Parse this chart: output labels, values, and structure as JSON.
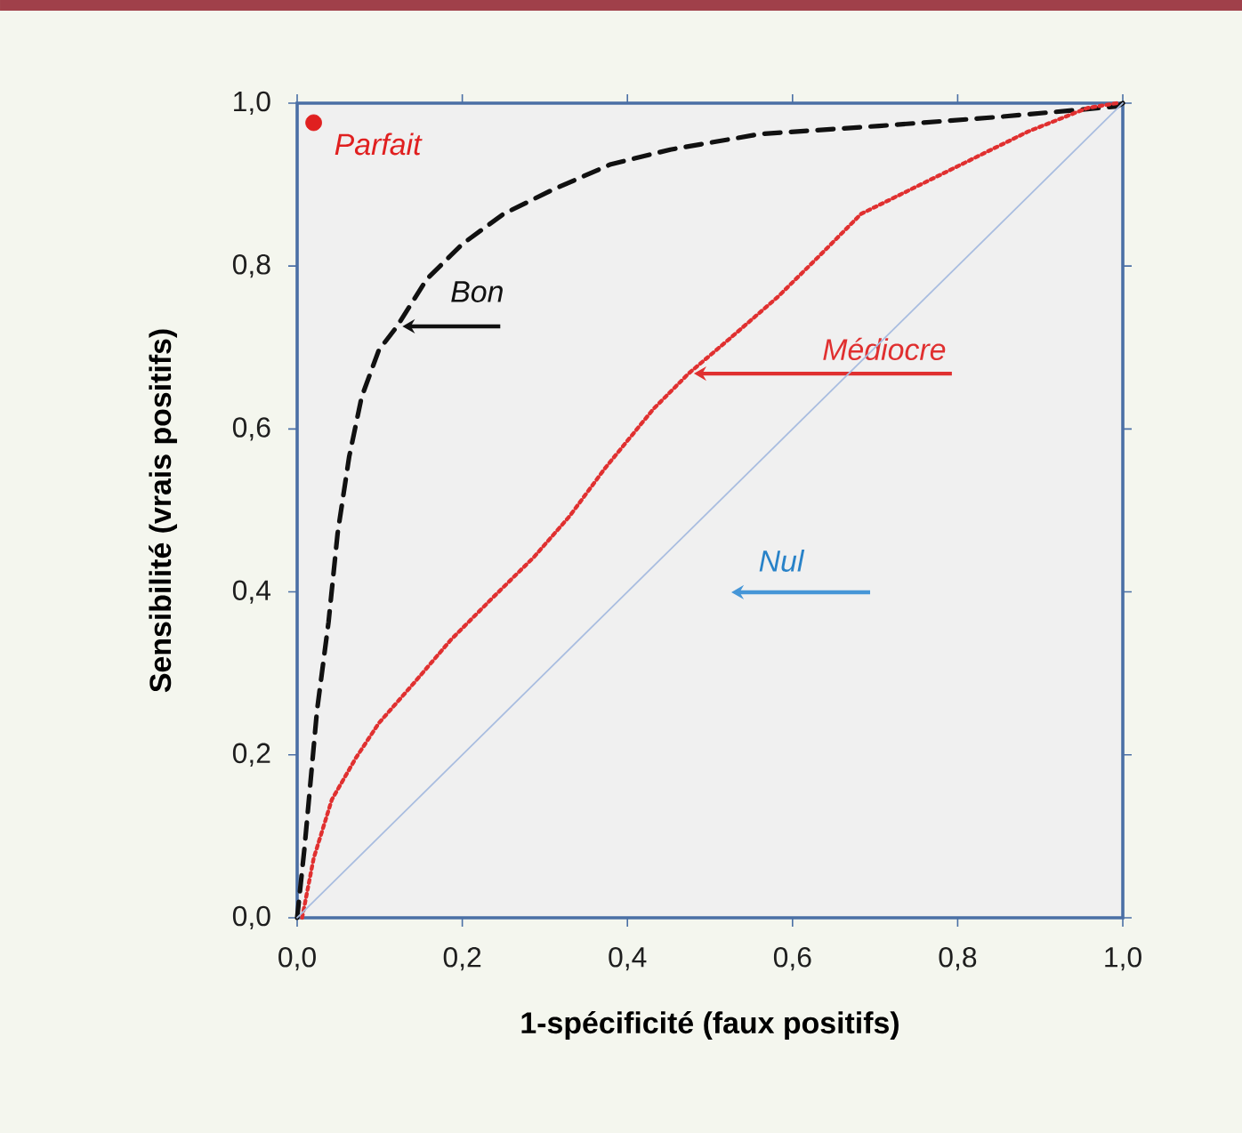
{
  "chart_data": {
    "type": "line",
    "xlabel": "1-spécificité (faux positifs)",
    "ylabel": "Sensibilité (vrais positifs)",
    "xlim": [
      0,
      1
    ],
    "ylim": [
      0,
      1
    ],
    "xticks": [
      {
        "value": 0,
        "label": "0,0"
      },
      {
        "value": 0.2,
        "label": "0,2"
      },
      {
        "value": 0.4,
        "label": "0,4"
      },
      {
        "value": 0.6,
        "label": "0,6"
      },
      {
        "value": 0.8,
        "label": "0,8"
      },
      {
        "value": 1,
        "label": "1,0"
      }
    ],
    "yticks": [
      {
        "value": 0,
        "label": "0,0"
      },
      {
        "value": 0.2,
        "label": "0,2"
      },
      {
        "value": 0.4,
        "label": "0,4"
      },
      {
        "value": 0.6,
        "label": "0,6"
      },
      {
        "value": 0.8,
        "label": "0,8"
      },
      {
        "value": 1,
        "label": "1,0"
      }
    ],
    "grid": false,
    "legend": false,
    "series": [
      {
        "name": "Bon",
        "color": "#111111",
        "line_style": "dashed",
        "marker": "none",
        "x": [
          0,
          0.009,
          0.024,
          0.038,
          0.049,
          0.063,
          0.078,
          0.099,
          0.121,
          0.157,
          0.2,
          0.25,
          0.308,
          0.38,
          0.452,
          0.56,
          0.705,
          0.849,
          0.993,
          1
        ],
        "values": [
          0,
          0.087,
          0.254,
          0.363,
          0.472,
          0.566,
          0.639,
          0.697,
          0.726,
          0.784,
          0.827,
          0.864,
          0.893,
          0.925,
          0.943,
          0.962,
          0.972,
          0.983,
          0.996,
          1
        ]
      },
      {
        "name": "Médiocre",
        "color": "#e03030",
        "line_style": "dotted",
        "marker": "none",
        "x": [
          0.006,
          0.02,
          0.042,
          0.071,
          0.099,
          0.143,
          0.186,
          0.236,
          0.287,
          0.33,
          0.373,
          0.431,
          0.474,
          0.524,
          0.582,
          0.633,
          0.683,
          0.741,
          0.813,
          0.885,
          0.957,
          0.993
        ],
        "values": [
          0,
          0.073,
          0.145,
          0.196,
          0.239,
          0.29,
          0.341,
          0.392,
          0.443,
          0.493,
          0.552,
          0.624,
          0.668,
          0.711,
          0.762,
          0.813,
          0.864,
          0.893,
          0.929,
          0.965,
          0.994,
          1
        ]
      },
      {
        "name": "Nul",
        "color": "#a9bde0",
        "line_style": "solid",
        "marker": "none",
        "x": [
          0,
          1
        ],
        "values": [
          0,
          1
        ]
      },
      {
        "name": "Parfait",
        "type": "scatter",
        "color": "#e02020",
        "marker": "circle",
        "x": [
          0.02
        ],
        "values": [
          0.976
        ]
      }
    ]
  }
}
